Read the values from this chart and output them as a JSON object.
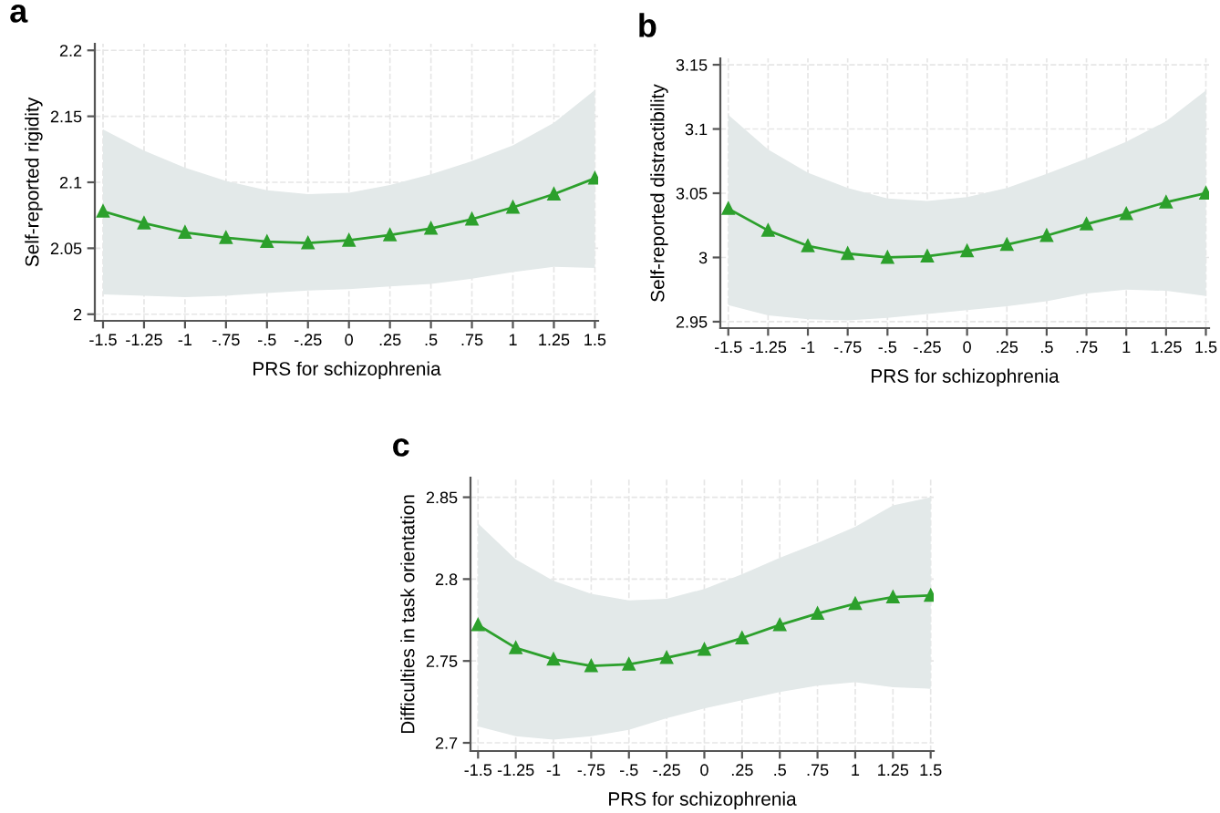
{
  "chart_data": [
    {
      "type": "line",
      "title": "a",
      "xlabel": "PRS for schizophrenia",
      "ylabel": "Self-reported rigidity",
      "x": [
        -1.5,
        -1.25,
        -1,
        -0.75,
        -0.5,
        -0.25,
        0,
        0.25,
        0.5,
        0.75,
        1,
        1.25,
        1.5
      ],
      "series": [
        {
          "color": "#2ca02c",
          "values": [
            2.078,
            2.069,
            2.062,
            2.058,
            2.055,
            2.054,
            2.056,
            2.06,
            2.065,
            2.072,
            2.081,
            2.091,
            2.103
          ],
          "lower": [
            2.015,
            2.014,
            2.013,
            2.014,
            2.016,
            2.018,
            2.019,
            2.021,
            2.023,
            2.027,
            2.032,
            2.036,
            2.035
          ],
          "upper": [
            2.14,
            2.124,
            2.111,
            2.101,
            2.094,
            2.091,
            2.092,
            2.098,
            2.106,
            2.116,
            2.128,
            2.145,
            2.17
          ]
        }
      ],
      "xlim": [
        -1.55,
        1.52
      ],
      "ylim": [
        1.995,
        2.205
      ],
      "xticks": [
        {
          "value": -1.5,
          "label": "-1.5"
        },
        {
          "value": -1.25,
          "label": "-1.25"
        },
        -1,
        {
          "value": -0.75,
          "label": "-.75"
        },
        {
          "value": -0.5,
          "label": "-.5"
        },
        {
          "value": -0.25,
          "label": "-.25"
        },
        0,
        {
          "value": 0.25,
          "label": ".25"
        },
        {
          "value": 0.5,
          "label": ".5"
        },
        {
          "value": 0.75,
          "label": ".75"
        },
        1,
        1.25,
        1.5
      ],
      "yticks": [
        2,
        2.05,
        2.1,
        2.15,
        2.2
      ],
      "grid": true,
      "marker": "triangle",
      "line_style": "solid"
    },
    {
      "type": "line",
      "title": "b",
      "xlabel": "PRS for schizophrenia",
      "ylabel": "Self-reported distractibility",
      "x": [
        -1.5,
        -1.25,
        -1,
        -0.75,
        -0.5,
        -0.25,
        0,
        0.25,
        0.5,
        0.75,
        1,
        1.25,
        1.5
      ],
      "series": [
        {
          "color": "#2ca02c",
          "values": [
            3.038,
            3.021,
            3.009,
            3.003,
            3.0,
            3.001,
            3.005,
            3.01,
            3.017,
            3.026,
            3.034,
            3.043,
            3.05
          ],
          "lower": [
            2.963,
            2.955,
            2.952,
            2.951,
            2.953,
            2.956,
            2.959,
            2.962,
            2.966,
            2.972,
            2.975,
            2.974,
            2.97
          ],
          "upper": [
            3.111,
            3.084,
            3.066,
            3.054,
            3.046,
            3.044,
            3.047,
            3.054,
            3.065,
            3.077,
            3.09,
            3.106,
            3.13
          ]
        }
      ],
      "xlim": [
        -1.55,
        1.52
      ],
      "ylim": [
        2.945,
        3.155
      ],
      "xticks": [
        {
          "value": -1.5,
          "label": "-1.5"
        },
        {
          "value": -1.25,
          "label": "-1.25"
        },
        -1,
        {
          "value": -0.75,
          "label": "-.75"
        },
        {
          "value": -0.5,
          "label": "-.5"
        },
        {
          "value": -0.25,
          "label": "-.25"
        },
        0,
        {
          "value": 0.25,
          "label": ".25"
        },
        {
          "value": 0.5,
          "label": ".5"
        },
        {
          "value": 0.75,
          "label": ".75"
        },
        1,
        1.25,
        1.5
      ],
      "yticks": [
        2.95,
        3,
        3.05,
        3.1,
        3.15
      ],
      "grid": true,
      "marker": "triangle",
      "line_style": "solid"
    },
    {
      "type": "line",
      "title": "c",
      "xlabel": "PRS for schizophrenia",
      "ylabel": "Difficulties in task orientation",
      "x": [
        -1.5,
        -1.25,
        -1,
        -0.75,
        -0.5,
        -0.25,
        0,
        0.25,
        0.5,
        0.75,
        1,
        1.25,
        1.5
      ],
      "series": [
        {
          "color": "#2ca02c",
          "values": [
            2.772,
            2.758,
            2.751,
            2.747,
            2.748,
            2.752,
            2.757,
            2.764,
            2.772,
            2.779,
            2.785,
            2.789,
            2.79
          ],
          "lower": [
            2.71,
            2.704,
            2.702,
            2.704,
            2.708,
            2.715,
            2.721,
            2.726,
            2.731,
            2.735,
            2.737,
            2.734,
            2.733
          ],
          "upper": [
            2.834,
            2.812,
            2.799,
            2.791,
            2.787,
            2.788,
            2.794,
            2.803,
            2.813,
            2.822,
            2.832,
            2.845,
            2.85
          ]
        }
      ],
      "xlim": [
        -1.55,
        1.52
      ],
      "ylim": [
        2.695,
        2.862
      ],
      "xticks": [
        {
          "value": -1.5,
          "label": "-1.5"
        },
        {
          "value": -1.25,
          "label": "-1.25"
        },
        -1,
        {
          "value": -0.75,
          "label": "-.75"
        },
        {
          "value": -0.5,
          "label": "-.5"
        },
        {
          "value": -0.25,
          "label": "-.25"
        },
        0,
        {
          "value": 0.25,
          "label": ".25"
        },
        {
          "value": 0.5,
          "label": ".5"
        },
        {
          "value": 0.75,
          "label": ".75"
        },
        1,
        1.25,
        1.5
      ],
      "yticks": [
        2.7,
        2.75,
        2.8,
        2.85
      ],
      "grid": true,
      "marker": "triangle",
      "line_style": "solid"
    }
  ]
}
